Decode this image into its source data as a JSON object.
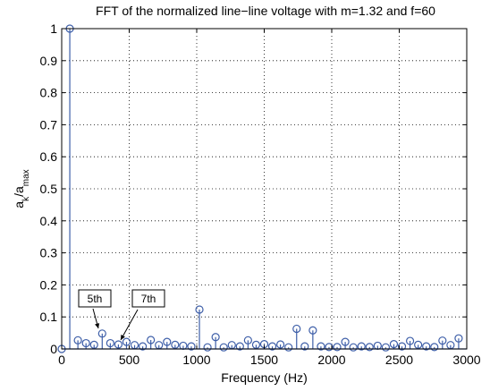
{
  "chart_data": {
    "type": "stem",
    "title": "FFT of the normalized line−line voltage with m=1.32 and f=60",
    "xlabel": "Frequency (Hz)",
    "ylabel": {
      "main": "a",
      "sub1": "k",
      "sep": "/a",
      "sub2": "max"
    },
    "xlim": [
      0,
      3000
    ],
    "ylim": [
      0,
      1
    ],
    "xticks": [
      0,
      500,
      1000,
      1500,
      2000,
      2500,
      3000
    ],
    "yticks": [
      0,
      0.1,
      0.2,
      0.3,
      0.4,
      0.5,
      0.6,
      0.7,
      0.8,
      0.9,
      1
    ],
    "grid": true,
    "series_color": "#3d5ea8",
    "x": [
      60,
      120,
      180,
      240,
      300,
      360,
      420,
      480,
      540,
      600,
      660,
      720,
      780,
      840,
      900,
      960,
      1020,
      1080,
      1140,
      1200,
      1260,
      1320,
      1380,
      1440,
      1500,
      1560,
      1620,
      1680,
      1740,
      1800,
      1860,
      1920,
      1980,
      2040,
      2100,
      2160,
      2220,
      2280,
      2340,
      2400,
      2460,
      2520,
      2580,
      2640,
      2700,
      2760,
      2820,
      2880,
      2940
    ],
    "y": [
      1.0,
      0.027,
      0.018,
      0.013,
      0.048,
      0.018,
      0.014,
      0.022,
      0.012,
      0.008,
      0.028,
      0.012,
      0.022,
      0.013,
      0.01,
      0.008,
      0.123,
      0.005,
      0.037,
      0.005,
      0.012,
      0.008,
      0.027,
      0.013,
      0.015,
      0.008,
      0.014,
      0.005,
      0.063,
      0.008,
      0.058,
      0.008,
      0.006,
      0.006,
      0.022,
      0.005,
      0.008,
      0.006,
      0.01,
      0.005,
      0.015,
      0.008,
      0.025,
      0.013,
      0.008,
      0.006,
      0.026,
      0.012,
      0.033
    ],
    "annotations": [
      {
        "label": "5th",
        "x": 300,
        "y": 0.048
      },
      {
        "label": "7th",
        "x": 420,
        "y": 0.014
      }
    ]
  }
}
